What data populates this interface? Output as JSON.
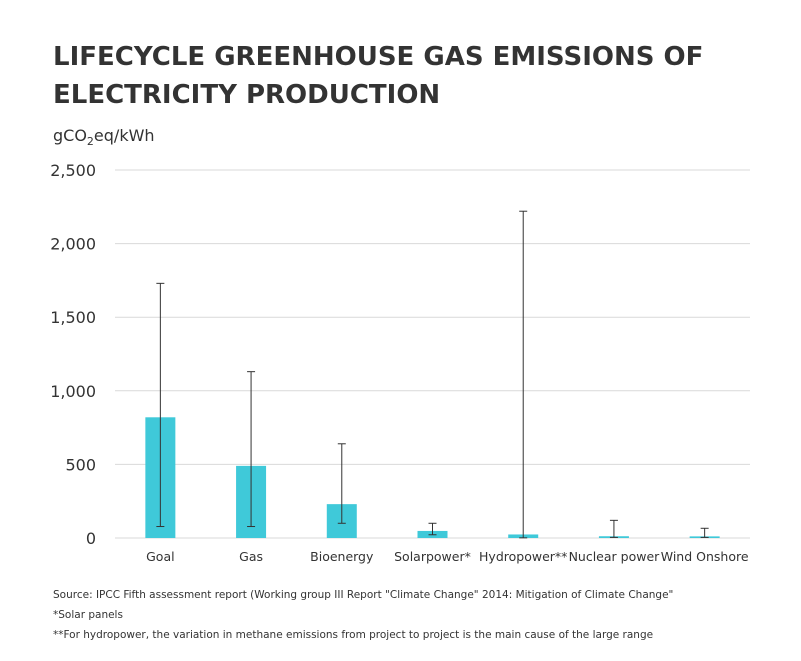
{
  "title": "LIFECYCLE GREENHOUSE GAS EMISSIONS OF ELECTRICITY PRODUCTION",
  "unit": {
    "prefix": "gCO",
    "sub": "2",
    "suffix": "eq/kWh"
  },
  "colors": {
    "bar": "#3fc9d9",
    "grid": "#d9d9d9",
    "text": "#333333",
    "whisker": "#333333"
  },
  "chart_data": {
    "type": "bar",
    "ylabel": "gCO2eq/kWh",
    "ylim": [
      0,
      2500
    ],
    "yticks": [
      0,
      500,
      1000,
      1500,
      2000,
      2500
    ],
    "ytick_labels": [
      "0",
      "500",
      "1,000",
      "1,500",
      "2,000",
      "2,500"
    ],
    "grid": true,
    "categories": [
      "Goal",
      "Gas",
      "Bioenergy",
      "Solarpower*",
      "Hydropower**",
      "Nuclear power",
      "Wind Onshore"
    ],
    "values": [
      820,
      490,
      230,
      48,
      24,
      12,
      11
    ],
    "error_low": [
      78,
      78,
      100,
      22,
      1,
      4,
      4
    ],
    "error_high": [
      1730,
      1130,
      640,
      100,
      2220,
      120,
      66
    ]
  },
  "footnotes": [
    "Source: IPCC Fifth assessment report (Working group III Report \"Climate Change\" 2014: Mitigation of Climate Change\"",
    "*Solar panels",
    "**For hydropower, the variation in methane emissions from project to project is the main cause of the large range"
  ]
}
